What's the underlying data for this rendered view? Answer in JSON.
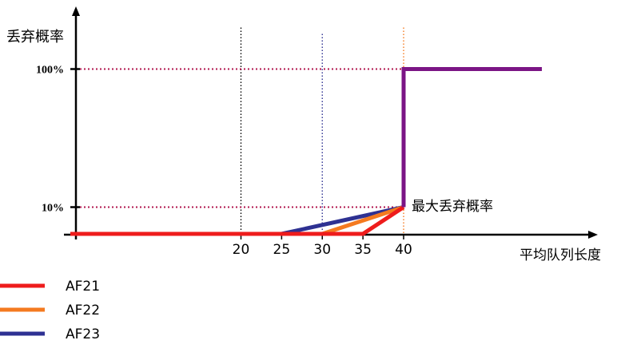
{
  "chart_data": {
    "type": "line",
    "ylabel": "丢弃概率",
    "xlabel": "平均队列长度",
    "x_ticks": [
      "20",
      "25",
      "30",
      "35",
      "40"
    ],
    "y_ticks": [
      "10%",
      "100%"
    ],
    "annotation": "最大丢弃概率",
    "series": [
      {
        "name": "AF21",
        "color": "#ee1c1c",
        "points": [
          [
            0,
            0
          ],
          [
            35,
            0
          ],
          [
            40,
            10
          ]
        ]
      },
      {
        "name": "AF22",
        "color": "#f47a20",
        "points": [
          [
            0,
            0
          ],
          [
            30,
            0
          ],
          [
            40,
            10
          ]
        ]
      },
      {
        "name": "AF23",
        "color": "#2e3192",
        "points": [
          [
            0,
            0
          ],
          [
            25,
            0
          ],
          [
            40,
            10
          ]
        ]
      },
      {
        "name": "",
        "color": "#17871e",
        "points": [
          [
            0,
            0
          ],
          [
            35,
            0
          ]
        ]
      },
      {
        "name": "",
        "color": "#7b1585",
        "points": [
          [
            40,
            10
          ],
          [
            40,
            100
          ],
          [
            57,
            100
          ]
        ]
      }
    ],
    "reference_lines": {
      "x": [
        {
          "value": 20,
          "color": "#000000"
        },
        {
          "value": 30,
          "color": "#2e3192"
        },
        {
          "value": 40,
          "color": "#f47a20"
        }
      ],
      "y": [
        {
          "value": 10,
          "color": "#b0164e"
        },
        {
          "value": 100,
          "color": "#b0164e"
        }
      ]
    },
    "legend": {
      "position": "bottom-left"
    }
  }
}
